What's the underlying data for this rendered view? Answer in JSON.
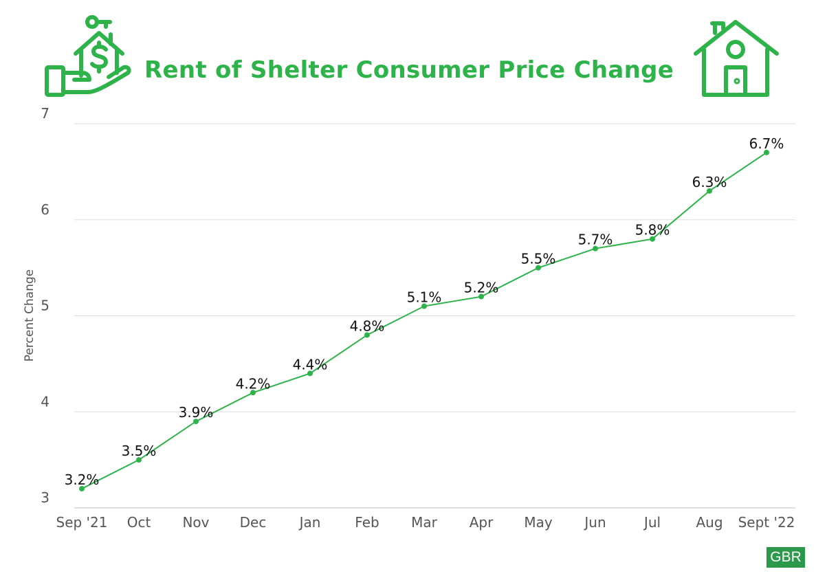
{
  "title": "Rent of Shelter Consumer Price Change",
  "badge": "GBR",
  "colors": {
    "accent": "#2db34a",
    "grid": "#dddddd",
    "text": "#555555"
  },
  "icons": [
    "hand-house-dollar-key-icon",
    "house-icon"
  ],
  "chart_data": {
    "type": "line",
    "ylabel": "Percent Change",
    "ylim": [
      3,
      7
    ],
    "yticks": [
      3,
      4,
      5,
      6,
      7
    ],
    "grid": true,
    "categories": [
      "Sep '21",
      "Oct",
      "Nov",
      "Dec",
      "Jan",
      "Feb",
      "Mar",
      "Apr",
      "May",
      "Jun",
      "Jul",
      "Aug",
      "Sept '22"
    ],
    "values": [
      3.2,
      3.5,
      3.9,
      4.2,
      4.4,
      4.8,
      5.1,
      5.2,
      5.5,
      5.7,
      5.8,
      6.3,
      6.7
    ],
    "data_labels": [
      "3.2%",
      "3.5%",
      "3.9%",
      "4.2%",
      "4.4%",
      "4.8%",
      "5.1%",
      "5.2%",
      "5.5%",
      "5.7%",
      "5.8%",
      "6.3%",
      "6.7%"
    ]
  }
}
